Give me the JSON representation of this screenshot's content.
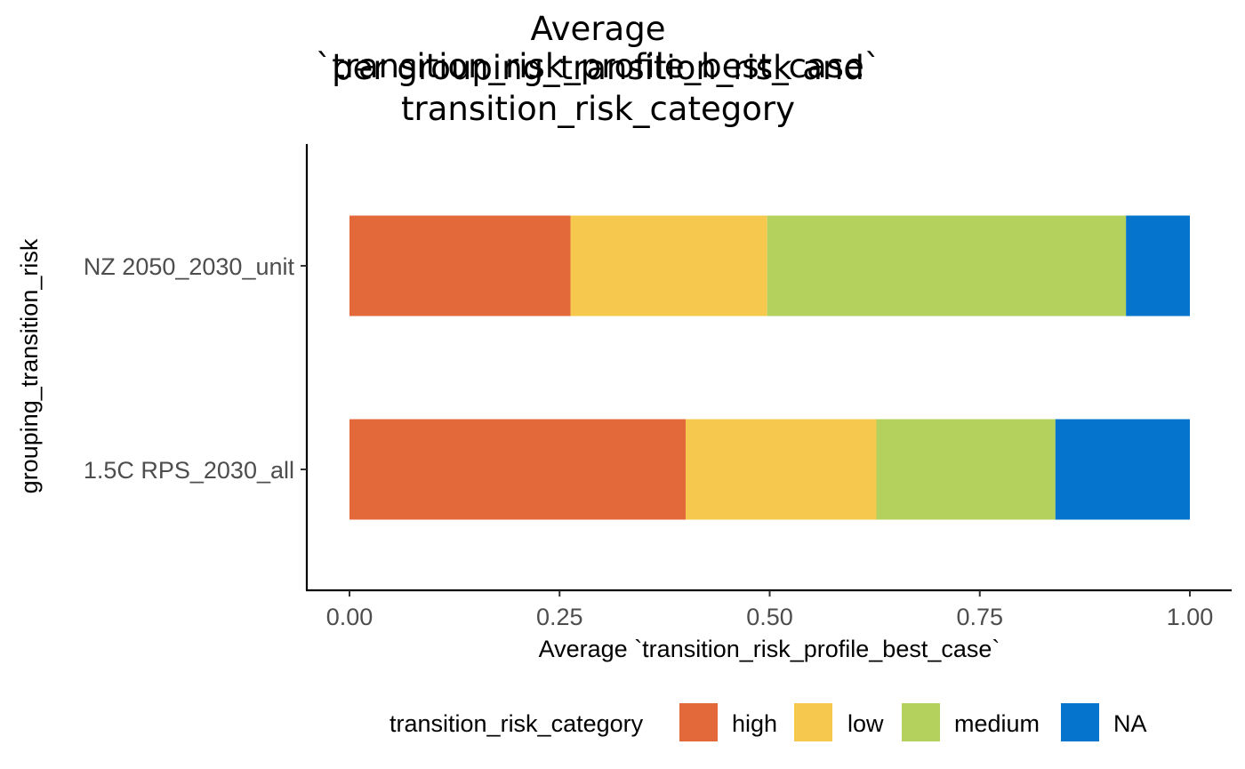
{
  "chart_data": {
    "type": "bar",
    "orientation": "horizontal",
    "stacked": true,
    "title": [
      "Average `transition_risk_profile_best_case`",
      "per grouping_transition_risk and",
      "transition_risk_category"
    ],
    "xlabel": "Average `transition_risk_profile_best_case`",
    "ylabel": "grouping_transition_risk",
    "xlim": [
      0,
      1
    ],
    "x_ticks": [
      "0.00",
      "0.25",
      "0.50",
      "0.75",
      "1.00"
    ],
    "categories": [
      "NZ 2050_2030_unit",
      "1.5C RPS_2030_all"
    ],
    "legend_title": "transition_risk_category",
    "legend_position": "bottom",
    "series": [
      {
        "name": "high",
        "color": "#e3693a",
        "values": [
          0.263,
          0.4
        ]
      },
      {
        "name": "low",
        "color": "#f6c94e",
        "values": [
          0.234,
          0.227
        ]
      },
      {
        "name": "medium",
        "color": "#b3d15c",
        "values": [
          0.427,
          0.213
        ]
      },
      {
        "name": "NA",
        "color": "#0474cd",
        "values": [
          0.076,
          0.16
        ]
      }
    ]
  }
}
